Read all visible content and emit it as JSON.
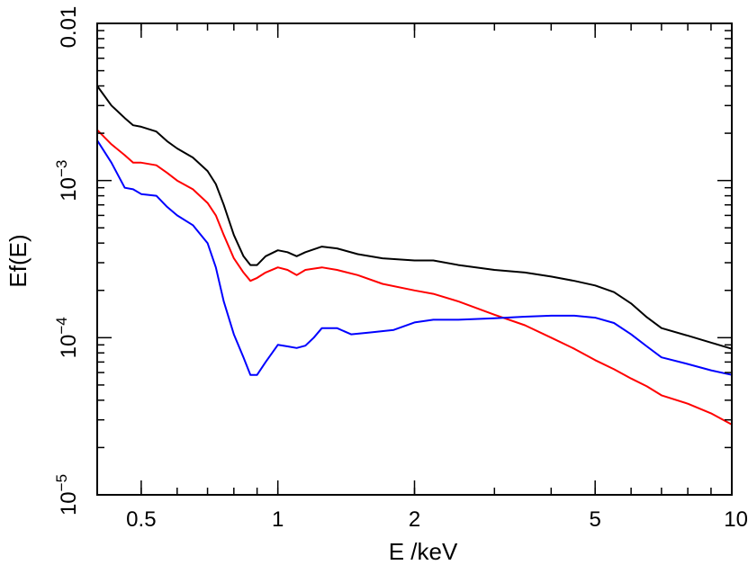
{
  "chart_data": {
    "type": "line",
    "xlabel": "E /keV",
    "ylabel": "Ef(E)",
    "xscale": "log",
    "yscale": "log",
    "xlim": [
      0.4,
      10
    ],
    "ylim": [
      1e-05,
      0.01
    ],
    "grid": false,
    "legend": "none",
    "x_ticks": [
      {
        "value": 0.5,
        "label": "0.5"
      },
      {
        "value": 1,
        "label": "1"
      },
      {
        "value": 2,
        "label": "2"
      },
      {
        "value": 5,
        "label": "5"
      },
      {
        "value": 10,
        "label": "10"
      }
    ],
    "y_ticks": [
      {
        "value": 1e-05,
        "base": "10",
        "exp": "−5"
      },
      {
        "value": 0.0001,
        "base": "10",
        "exp": "−4"
      },
      {
        "value": 0.001,
        "base": "10",
        "exp": "−3"
      },
      {
        "value": 0.01,
        "label": "0.01"
      }
    ],
    "series": [
      {
        "color": "#000000",
        "points": [
          [
            0.4,
            0.004
          ],
          [
            0.43,
            0.003
          ],
          [
            0.46,
            0.0025
          ],
          [
            0.48,
            0.00225
          ],
          [
            0.5,
            0.0022
          ],
          [
            0.54,
            0.00205
          ],
          [
            0.57,
            0.00178
          ],
          [
            0.6,
            0.0016
          ],
          [
            0.65,
            0.0014
          ],
          [
            0.7,
            0.00115
          ],
          [
            0.73,
            0.00095
          ],
          [
            0.76,
            0.0007
          ],
          [
            0.8,
            0.00045
          ],
          [
            0.84,
            0.00033
          ],
          [
            0.87,
            0.00029
          ],
          [
            0.9,
            0.00029
          ],
          [
            0.94,
            0.00033
          ],
          [
            1.0,
            0.00036
          ],
          [
            1.05,
            0.00035
          ],
          [
            1.1,
            0.00033
          ],
          [
            1.15,
            0.00035
          ],
          [
            1.25,
            0.00038
          ],
          [
            1.35,
            0.00037
          ],
          [
            1.5,
            0.00034
          ],
          [
            1.7,
            0.00032
          ],
          [
            2.0,
            0.00031
          ],
          [
            2.2,
            0.00031
          ],
          [
            2.5,
            0.00029
          ],
          [
            3.0,
            0.00027
          ],
          [
            3.5,
            0.00026
          ],
          [
            4.0,
            0.000245
          ],
          [
            4.5,
            0.00023
          ],
          [
            5.0,
            0.000215
          ],
          [
            5.5,
            0.000195
          ],
          [
            6.0,
            0.000165
          ],
          [
            6.5,
            0.000135
          ],
          [
            7.0,
            0.000115
          ],
          [
            8.0,
            0.000103
          ],
          [
            9.0,
            9.3e-05
          ],
          [
            10.0,
            8.5e-05
          ]
        ]
      },
      {
        "color": "#ff0000",
        "points": [
          [
            0.4,
            0.0021
          ],
          [
            0.43,
            0.0017
          ],
          [
            0.46,
            0.00145
          ],
          [
            0.48,
            0.0013
          ],
          [
            0.5,
            0.0013
          ],
          [
            0.54,
            0.00125
          ],
          [
            0.57,
            0.00112
          ],
          [
            0.6,
            0.001
          ],
          [
            0.65,
            0.00088
          ],
          [
            0.7,
            0.00072
          ],
          [
            0.73,
            0.0006
          ],
          [
            0.76,
            0.00045
          ],
          [
            0.8,
            0.00032
          ],
          [
            0.84,
            0.00026
          ],
          [
            0.87,
            0.00023
          ],
          [
            0.9,
            0.00024
          ],
          [
            0.94,
            0.00026
          ],
          [
            1.0,
            0.00028
          ],
          [
            1.05,
            0.00027
          ],
          [
            1.1,
            0.00025
          ],
          [
            1.15,
            0.00027
          ],
          [
            1.25,
            0.00028
          ],
          [
            1.35,
            0.00027
          ],
          [
            1.5,
            0.00025
          ],
          [
            1.7,
            0.00022
          ],
          [
            2.0,
            0.0002
          ],
          [
            2.2,
            0.00019
          ],
          [
            2.5,
            0.00017
          ],
          [
            3.0,
            0.00014
          ],
          [
            3.5,
            0.00012
          ],
          [
            4.0,
            0.0001
          ],
          [
            4.5,
            8.5e-05
          ],
          [
            5.0,
            7.2e-05
          ],
          [
            5.5,
            6.3e-05
          ],
          [
            6.0,
            5.5e-05
          ],
          [
            6.5,
            4.9e-05
          ],
          [
            7.0,
            4.3e-05
          ],
          [
            8.0,
            3.8e-05
          ],
          [
            9.0,
            3.3e-05
          ],
          [
            10.0,
            2.8e-05
          ]
        ]
      },
      {
        "color": "#0000ff",
        "points": [
          [
            0.4,
            0.0018
          ],
          [
            0.43,
            0.0013
          ],
          [
            0.46,
            0.0009
          ],
          [
            0.48,
            0.00088
          ],
          [
            0.5,
            0.00082
          ],
          [
            0.54,
            0.0008
          ],
          [
            0.57,
            0.00068
          ],
          [
            0.6,
            0.0006
          ],
          [
            0.65,
            0.00052
          ],
          [
            0.7,
            0.0004
          ],
          [
            0.73,
            0.00028
          ],
          [
            0.76,
            0.00017
          ],
          [
            0.8,
            0.000105
          ],
          [
            0.84,
            7.5e-05
          ],
          [
            0.87,
            5.8e-05
          ],
          [
            0.9,
            5.8e-05
          ],
          [
            0.94,
            7e-05
          ],
          [
            1.0,
            9e-05
          ],
          [
            1.05,
            8.8e-05
          ],
          [
            1.1,
            8.6e-05
          ],
          [
            1.15,
            8.9e-05
          ],
          [
            1.2,
            0.0001
          ],
          [
            1.25,
            0.000115
          ],
          [
            1.35,
            0.000115
          ],
          [
            1.45,
            0.000105
          ],
          [
            1.6,
            0.000108
          ],
          [
            1.8,
            0.000112
          ],
          [
            2.0,
            0.000125
          ],
          [
            2.2,
            0.00013
          ],
          [
            2.5,
            0.00013
          ],
          [
            3.0,
            0.000133
          ],
          [
            3.5,
            0.000136
          ],
          [
            4.0,
            0.000138
          ],
          [
            4.5,
            0.000138
          ],
          [
            5.0,
            0.000134
          ],
          [
            5.5,
            0.000124
          ],
          [
            6.0,
            0.000105
          ],
          [
            6.5,
            8.8e-05
          ],
          [
            7.0,
            7.5e-05
          ],
          [
            8.0,
            6.8e-05
          ],
          [
            9.0,
            6.2e-05
          ],
          [
            10.0,
            5.8e-05
          ]
        ]
      }
    ]
  }
}
